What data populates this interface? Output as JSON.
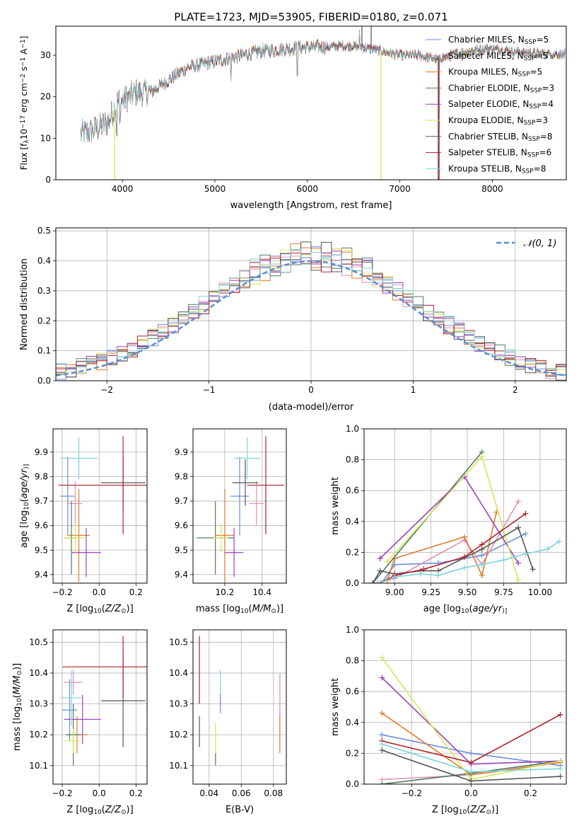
{
  "title": "PLATE=1723, MJD=53905, FIBERID=0180, z=0.071",
  "colors": {
    "Chabrier MILES": "#6a8fdc",
    "Salpeter MILES": "#e08fb8",
    "Kroupa MILES": "#e07b2a",
    "Chabrier ELODIE": "#4f7a5e",
    "Salpeter ELODIE": "#9b3fb6",
    "Kroupa ELODIE": "#d6e65a",
    "Chabrier STELIB": "#555555",
    "Salpeter STELIB": "#b0202a",
    "Kroupa STELIB": "#7fd3dc",
    "normal": "#5b8cd8"
  },
  "chart_data": [
    {
      "id": "spectrum",
      "type": "line",
      "xlabel": "wavelength [Angstrom, rest frame]",
      "ylabel": "Flux [f$_\\lambda$10$^{-17}$ erg cm$^{-2}$ s$^{-1}$ A$^{-1}$]",
      "ylabel_parts": [
        "Flux [f",
        "λ",
        "10",
        "−17",
        " erg cm",
        "−2",
        " s",
        "−1",
        " A",
        "−1",
        "]"
      ],
      "xlim": [
        3280,
        8800
      ],
      "ylim": [
        0,
        37
      ],
      "xticks": [
        4000,
        5000,
        6000,
        7000,
        8000
      ],
      "xtick_labels": [
        "4000",
        "5000",
        "6000",
        "7000",
        "8000"
      ],
      "yticks": [
        0,
        10,
        20,
        30
      ],
      "ytick_labels": [
        "0",
        "10",
        "20",
        "30"
      ],
      "legend_loc": "right",
      "legend": [
        {
          "name": "Chabrier MILES",
          "sub": "SSP",
          "n": "=5"
        },
        {
          "name": "Salpeter MILES",
          "sub": "SSP",
          "n": "=5"
        },
        {
          "name": "Kroupa MILES",
          "sub": "SSP",
          "n": "=5"
        },
        {
          "name": "Chabrier ELODIE",
          "sub": "SSP",
          "n": "=3"
        },
        {
          "name": "Salpeter ELODIE",
          "sub": "SSP",
          "n": "=4"
        },
        {
          "name": "Kroupa ELODIE",
          "sub": "SSP",
          "n": "=3"
        },
        {
          "name": "Chabrier STELIB",
          "sub": "SSP",
          "n": "=8"
        },
        {
          "name": "Salpeter STELIB",
          "sub": "SSP",
          "n": "=6"
        },
        {
          "name": "Kroupa STELIB",
          "sub": "SSP",
          "n": "=8"
        }
      ],
      "legend_prefix": "N",
      "continuum": [
        [
          3550,
          11
        ],
        [
          3700,
          12
        ],
        [
          3850,
          14
        ],
        [
          3950,
          19
        ],
        [
          4000,
          19
        ],
        [
          4150,
          21
        ],
        [
          4300,
          21
        ],
        [
          4500,
          24
        ],
        [
          4700,
          27
        ],
        [
          4900,
          28
        ],
        [
          5100,
          29
        ],
        [
          5300,
          30
        ],
        [
          5500,
          31
        ],
        [
          5800,
          31.5
        ],
        [
          6000,
          32
        ],
        [
          6200,
          32
        ],
        [
          6400,
          32.3
        ],
        [
          6600,
          32
        ],
        [
          6800,
          31
        ],
        [
          7000,
          30
        ],
        [
          7200,
          30
        ],
        [
          7400,
          29
        ],
        [
          7600,
          30.3
        ],
        [
          7800,
          31.2
        ],
        [
          8000,
          31.6
        ],
        [
          8200,
          31
        ],
        [
          8500,
          30.4
        ],
        [
          8790,
          30.2
        ]
      ],
      "range": [
        3550,
        8790
      ],
      "glitches": [
        {
          "series": "Kroupa ELODIE",
          "x": 3915,
          "y": 0
        },
        {
          "series": "Kroupa ELODIE",
          "x": 6795,
          "y": 0
        },
        {
          "series": "Chabrier STELIB",
          "x": 7415,
          "y": 0
        },
        {
          "series": "Salpeter STELIB",
          "x": 7425,
          "y": 0
        },
        {
          "series": "Chabrier STELIB",
          "x": 6590,
          "y": 37
        },
        {
          "series": "Chabrier STELIB",
          "x": 6690,
          "y": 37
        }
      ]
    },
    {
      "id": "residuals",
      "type": "line",
      "xlabel": "(data-model)/error",
      "ylabel": "Normed distribution",
      "xlim": [
        -2.5,
        2.5
      ],
      "ylim": [
        0,
        0.51
      ],
      "xticks": [
        -2,
        -1,
        0,
        1,
        2
      ],
      "xtick_labels": [
        "−2",
        "−1",
        "0",
        "1",
        "2"
      ],
      "yticks": [
        0,
        0.1,
        0.2,
        0.3,
        0.4,
        0.5
      ],
      "ytick_labels": [
        "0.0",
        "0.1",
        "0.2",
        "0.3",
        "0.4",
        "0.5"
      ],
      "grid": true,
      "legend_loc": "upper right",
      "legend": [
        {
          "name": "𝒩(0, 1)"
        }
      ],
      "bin_width": 0.1,
      "normal": {
        "mu": 0,
        "sigma": 1
      }
    },
    {
      "id": "age_vs_Z",
      "type": "scatter",
      "xlabel": "Z [log10(Z/Z⊙)]",
      "xlabel_parts": [
        "Z [log",
        "10",
        "(",
        "Z/Z",
        "⊙",
        ")]"
      ],
      "ylabel": "age [log10(age/yr)]",
      "ylabel_parts": [
        "age  [log",
        "10",
        "(",
        "age/yr",
        ")]"
      ],
      "xlim": [
        -0.25,
        0.26
      ],
      "ylim": [
        9.365,
        9.995
      ],
      "xticks": [
        -0.2,
        0,
        0.2
      ],
      "xtick_labels": [
        "−0.2",
        "0.0",
        "0.2"
      ],
      "yticks": [
        9.4,
        9.5,
        9.6,
        9.7,
        9.8,
        9.9
      ],
      "ytick_labels": [
        "9.4",
        "9.5",
        "9.6",
        "9.7",
        "9.8",
        "9.9"
      ],
      "grid": true,
      "points": [
        {
          "series": "Chabrier MILES",
          "x": -0.17,
          "xerr": 0.04,
          "y": 9.72,
          "yerr": 0.16
        },
        {
          "series": "Salpeter MILES",
          "x": -0.13,
          "xerr": 0.04,
          "y": 9.69,
          "yerr": 0.09
        },
        {
          "series": "Kroupa MILES",
          "x": -0.11,
          "xerr": 0.06,
          "y": 9.56,
          "yerr": 0.19
        },
        {
          "series": "Chabrier ELODIE",
          "x": -0.15,
          "xerr": 0.04,
          "y": 9.55,
          "yerr": 0.15
        },
        {
          "series": "Salpeter ELODIE",
          "x": -0.07,
          "xerr": 0.08,
          "y": 9.49,
          "yerr": 0.1
        },
        {
          "series": "Kroupa ELODIE",
          "x": -0.13,
          "xerr": 0.06,
          "y": 9.55,
          "yerr": 0.06
        },
        {
          "series": "Chabrier STELIB",
          "x": 0.13,
          "xerr": 0.12,
          "y": 9.775,
          "yerr": 0.095
        },
        {
          "series": "Salpeter STELIB",
          "x": 0.13,
          "xerr": 0.35,
          "y": 9.765,
          "yerr": 0.2
        },
        {
          "series": "Kroupa STELIB",
          "x": -0.11,
          "xerr": 0.1,
          "y": 9.875,
          "yerr": 0.085
        }
      ]
    },
    {
      "id": "age_vs_mass",
      "type": "scatter",
      "xlabel": "mass [log10(M/M⊙)]",
      "xlabel_parts": [
        "mass [log",
        "10",
        "(",
        "M/M",
        "⊙",
        ")]"
      ],
      "xlim": [
        10.03,
        10.53
      ],
      "ylim": [
        9.365,
        9.995
      ],
      "xticks": [
        10.2,
        10.4
      ],
      "xtick_labels": [
        "10.2",
        "10.4"
      ],
      "yticks": [
        9.4,
        9.5,
        9.6,
        9.7,
        9.8,
        9.9
      ],
      "ytick_labels": [
        "9.4",
        "9.5",
        "9.6",
        "9.7",
        "9.8",
        "9.9"
      ],
      "grid": true,
      "points": [
        {
          "series": "Chabrier MILES",
          "x": 10.28,
          "xerr": 0.05,
          "y": 9.72,
          "yerr": 0.16
        },
        {
          "series": "Salpeter MILES",
          "x": 10.37,
          "xerr": 0.04,
          "y": 9.69,
          "yerr": 0.09
        },
        {
          "series": "Kroupa MILES",
          "x": 10.2,
          "xerr": 0.05,
          "y": 9.56,
          "yerr": 0.19
        },
        {
          "series": "Chabrier ELODIE",
          "x": 10.15,
          "xerr": 0.1,
          "y": 9.55,
          "yerr": 0.15
        },
        {
          "series": "Salpeter ELODIE",
          "x": 10.25,
          "xerr": 0.05,
          "y": 9.49,
          "yerr": 0.1
        },
        {
          "series": "Kroupa ELODIE",
          "x": 10.18,
          "xerr": 0.04,
          "y": 9.55,
          "yerr": 0.06
        },
        {
          "series": "Chabrier STELIB",
          "x": 10.31,
          "xerr": 0.07,
          "y": 9.775,
          "yerr": 0.095
        },
        {
          "series": "Salpeter STELIB",
          "x": 10.42,
          "xerr": 0.1,
          "y": 9.765,
          "yerr": 0.2
        },
        {
          "series": "Kroupa STELIB",
          "x": 10.32,
          "xerr": 0.07,
          "y": 9.875,
          "yerr": 0.085
        }
      ]
    },
    {
      "id": "mass_weight_vs_age",
      "type": "line",
      "xlabel": "age [log10(age/yr)]",
      "xlabel_parts": [
        "age  [log",
        "10",
        "(",
        "age/yr",
        ")]"
      ],
      "ylabel": "mass weight",
      "xlim": [
        8.79,
        10.18
      ],
      "ylim": [
        0,
        1
      ],
      "xticks": [
        9.0,
        9.25,
        9.5,
        9.75,
        10.0
      ],
      "xtick_labels": [
        "9.00",
        "9.25",
        "9.50",
        "9.75",
        "10.00"
      ],
      "yticks": [
        0,
        0.2,
        0.4,
        0.6,
        0.8,
        1.0
      ],
      "ytick_labels": [
        "0.0",
        "0.2",
        "0.4",
        "0.6",
        "0.8",
        "1.0"
      ],
      "grid": true,
      "series": [
        {
          "name": "Chabrier MILES",
          "x": [
            8.91,
            9.0,
            9.3,
            9.6,
            9.9
          ],
          "y": [
            0.0,
            0.12,
            0.13,
            0.18,
            0.32
          ]
        },
        {
          "name": "Salpeter MILES",
          "x": [
            8.88,
            9.0,
            9.48,
            9.6,
            9.85
          ],
          "y": [
            0.0,
            0.03,
            0.28,
            0.12,
            0.53
          ]
        },
        {
          "name": "Kroupa MILES",
          "x": [
            8.95,
            9.0,
            9.48,
            9.6,
            9.7
          ],
          "y": [
            0.02,
            0.16,
            0.3,
            0.05,
            0.46
          ]
        },
        {
          "name": "Chabrier ELODIE",
          "x": [
            8.85,
            9.6
          ],
          "y": [
            0.0,
            0.85
          ]
        },
        {
          "name": "Salpeter ELODIE",
          "x": [
            8.9,
            9.48,
            9.85
          ],
          "y": [
            0.16,
            0.69,
            0.13
          ]
        },
        {
          "name": "Kroupa ELODIE",
          "x": [
            8.95,
            9.6,
            9.85
          ],
          "y": [
            0.14,
            0.82,
            0.02
          ]
        },
        {
          "name": "Chabrier STELIB",
          "x": [
            8.85,
            8.9,
            9.0,
            9.18,
            9.3,
            9.6,
            9.85,
            9.95
          ],
          "y": [
            0.0,
            0.08,
            0.06,
            0.08,
            0.08,
            0.22,
            0.36,
            0.09
          ]
        },
        {
          "name": "Salpeter STELIB",
          "x": [
            8.9,
            9.0,
            9.2,
            9.48,
            9.6,
            9.9
          ],
          "y": [
            0.0,
            0.05,
            0.09,
            0.17,
            0.25,
            0.45
          ]
        },
        {
          "name": "Kroupa STELIB",
          "x": [
            8.9,
            9.0,
            9.18,
            9.3,
            9.48,
            9.6,
            9.75,
            9.9,
            10.05,
            10.13
          ],
          "y": [
            0.0,
            0.04,
            0.06,
            0.05,
            0.1,
            0.12,
            0.15,
            0.19,
            0.22,
            0.27
          ]
        }
      ]
    },
    {
      "id": "mass_vs_Z",
      "type": "scatter",
      "xlabel": "Z [log10(Z/Z⊙)]",
      "xlabel_parts": [
        "Z [log",
        "10",
        "(",
        "Z/Z",
        "⊙",
        ")]"
      ],
      "ylabel": "mass [log10(M/M⊙)]",
      "ylabel_parts": [
        "mass [log",
        "10",
        "(",
        "M/M",
        "⊙",
        ")]"
      ],
      "xlim": [
        -0.25,
        0.26
      ],
      "ylim": [
        10.04,
        10.54
      ],
      "xticks": [
        -0.2,
        0,
        0.2
      ],
      "xtick_labels": [
        "−0.2",
        "0.0",
        "0.2"
      ],
      "yticks": [
        10.1,
        10.2,
        10.3,
        10.4,
        10.5
      ],
      "ytick_labels": [
        "10.1",
        "10.2",
        "10.3",
        "10.4",
        "10.5"
      ],
      "grid": true,
      "points": [
        {
          "series": "Chabrier MILES",
          "x": -0.16,
          "xerr": 0.04,
          "y": 10.28,
          "yerr": 0.1
        },
        {
          "series": "Salpeter MILES",
          "x": -0.14,
          "xerr": 0.05,
          "y": 10.37,
          "yerr": 0.04
        },
        {
          "series": "Kroupa MILES",
          "x": -0.12,
          "xerr": 0.06,
          "y": 10.2,
          "yerr": 0.06
        },
        {
          "series": "Chabrier ELODIE",
          "x": -0.14,
          "xerr": 0.04,
          "y": 10.2,
          "yerr": 0.1
        },
        {
          "series": "Salpeter ELODIE",
          "x": -0.09,
          "xerr": 0.1,
          "y": 10.25,
          "yerr": 0.08
        },
        {
          "series": "Kroupa ELODIE",
          "x": -0.14,
          "xerr": 0.05,
          "y": 10.18,
          "yerr": 0.04
        },
        {
          "series": "Chabrier STELIB",
          "x": 0.13,
          "xerr": 0.12,
          "y": 10.31,
          "yerr": 0.15
        },
        {
          "series": "Salpeter STELIB",
          "x": 0.13,
          "xerr": 0.33,
          "y": 10.42,
          "yerr": 0.1
        },
        {
          "series": "Kroupa STELIB",
          "x": -0.15,
          "xerr": 0.06,
          "y": 10.32,
          "yerr": 0.09
        }
      ]
    },
    {
      "id": "mass_vs_ebv",
      "type": "scatter",
      "xlabel": "E(B-V)",
      "xlim": [
        0.03,
        0.088
      ],
      "ylim": [
        10.04,
        10.54
      ],
      "xticks": [
        0.04,
        0.06,
        0.08
      ],
      "xtick_labels": [
        "0.04",
        "0.06",
        "0.08"
      ],
      "yticks": [
        10.1,
        10.2,
        10.3,
        10.4,
        10.5
      ],
      "ytick_labels": [
        "10.1",
        "10.2",
        "10.3",
        "10.4",
        "10.5"
      ],
      "grid": true,
      "points": [
        {
          "series": "Kroupa STELIB",
          "x": 0.047,
          "xerr": 0,
          "y": 10.35,
          "yerr": 0.06
        },
        {
          "series": "Chabrier MILES",
          "x": 0.047,
          "xerr": 0,
          "y": 10.3,
          "yerr": 0.03
        },
        {
          "series": "Chabrier STELIB",
          "x": 0.034,
          "xerr": 0,
          "y": 10.21,
          "yerr": 0.05
        },
        {
          "series": "Salpeter STELIB",
          "x": 0.034,
          "xerr": 0,
          "y": 10.41,
          "yerr": 0.11
        },
        {
          "series": "Kroupa ELODIE",
          "x": 0.044,
          "xerr": 0,
          "y": 10.18,
          "yerr": 0.06
        },
        {
          "series": "Chabrier ELODIE",
          "x": 0.044,
          "xerr": 0,
          "y": 10.12,
          "yerr": 0.02
        },
        {
          "series": "Salpeter MILES",
          "x": 0.084,
          "xerr": 0,
          "y": 10.28,
          "yerr": 0.12
        },
        {
          "series": "Kroupa MILES",
          "x": 0.084,
          "xerr": 0,
          "y": 10.2,
          "yerr": 0.06
        }
      ]
    },
    {
      "id": "mass_weight_vs_Z",
      "type": "line",
      "xlabel": "Z [log10(Z/Z⊙)]",
      "xlabel_parts": [
        "Z [log",
        "10",
        "(",
        "Z/Z",
        "⊙",
        ")]"
      ],
      "ylabel": "mass weight",
      "xlim": [
        -0.36,
        0.32
      ],
      "ylim": [
        0,
        1
      ],
      "xticks": [
        -0.2,
        0,
        0.2
      ],
      "xtick_labels": [
        "−0.2",
        "0.0",
        "0.2"
      ],
      "yticks": [
        0,
        0.2,
        0.4,
        0.6,
        0.8,
        1.0
      ],
      "ytick_labels": [
        "0.0",
        "0.2",
        "0.4",
        "0.6",
        "0.8",
        "1.0"
      ],
      "grid": true,
      "series": [
        {
          "name": "Chabrier MILES",
          "x": [
            -0.3,
            0.0,
            0.3
          ],
          "y": [
            0.32,
            0.2,
            0.12
          ]
        },
        {
          "name": "Salpeter MILES",
          "x": [
            -0.3,
            0.0,
            0.3
          ],
          "y": [
            0.03,
            0.06,
            0.14
          ]
        },
        {
          "name": "Kroupa MILES",
          "x": [
            -0.3,
            0.0,
            0.3
          ],
          "y": [
            0.46,
            0.06,
            0.14
          ]
        },
        {
          "name": "Chabrier ELODIE",
          "x": [
            -0.3,
            0.0,
            0.3
          ],
          "y": [
            0.0,
            0.07,
            0.15
          ]
        },
        {
          "name": "Salpeter ELODIE",
          "x": [
            -0.3,
            0.0,
            0.3
          ],
          "y": [
            0.69,
            0.13,
            0.15
          ]
        },
        {
          "name": "Kroupa ELODIE",
          "x": [
            -0.3,
            0.0,
            0.3
          ],
          "y": [
            0.82,
            0.03,
            0.15
          ]
        },
        {
          "name": "Chabrier STELIB",
          "x": [
            -0.3,
            0.0,
            0.3
          ],
          "y": [
            0.22,
            0.02,
            0.05
          ]
        },
        {
          "name": "Salpeter STELIB",
          "x": [
            -0.3,
            0.0,
            0.3
          ],
          "y": [
            0.28,
            0.14,
            0.45
          ]
        },
        {
          "name": "Kroupa STELIB",
          "x": [
            -0.3,
            0.0,
            0.3
          ],
          "y": [
            0.26,
            0.08,
            0.1
          ]
        }
      ]
    }
  ]
}
